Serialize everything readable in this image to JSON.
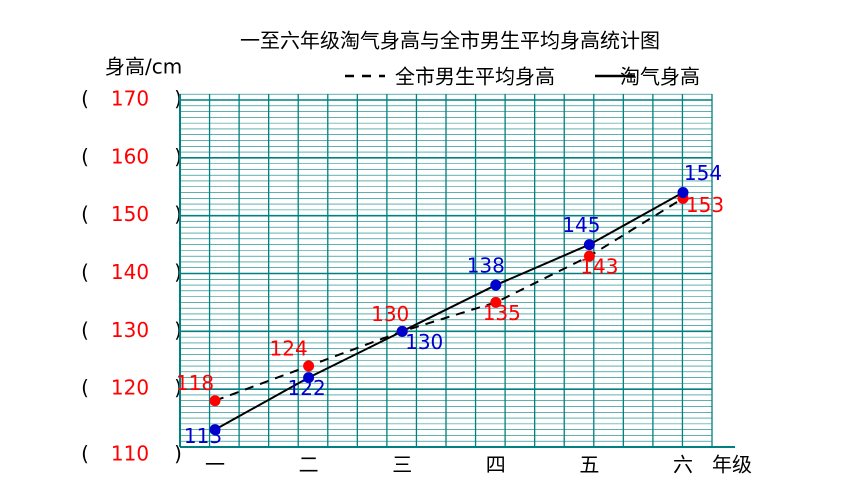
{
  "chart_data": {
    "type": "line",
    "title": "一至六年级淘气身高与全市男生平均身高统计图",
    "y_label": "身高/cm",
    "x_label": "年级",
    "categories": [
      "一",
      "二",
      "三",
      "四",
      "五",
      "六"
    ],
    "series": [
      {
        "name": "全市男生平均身高",
        "color": "#ff0000",
        "line_color": "#000000",
        "dash": true,
        "values": [
          118,
          124,
          130,
          135,
          143,
          153
        ]
      },
      {
        "name": "淘气身高",
        "color": "#0000cc",
        "line_color": "#000000",
        "dash": false,
        "values": [
          113,
          122,
          130,
          138,
          145,
          154
        ]
      }
    ],
    "ylim": [
      110,
      170
    ],
    "yticks": [
      110,
      120,
      130,
      140,
      150,
      160,
      170
    ],
    "tick_brackets": [
      "(",
      ")"
    ],
    "tick_color": "#ff0000",
    "grid_color": "#008080",
    "grid": true
  }
}
